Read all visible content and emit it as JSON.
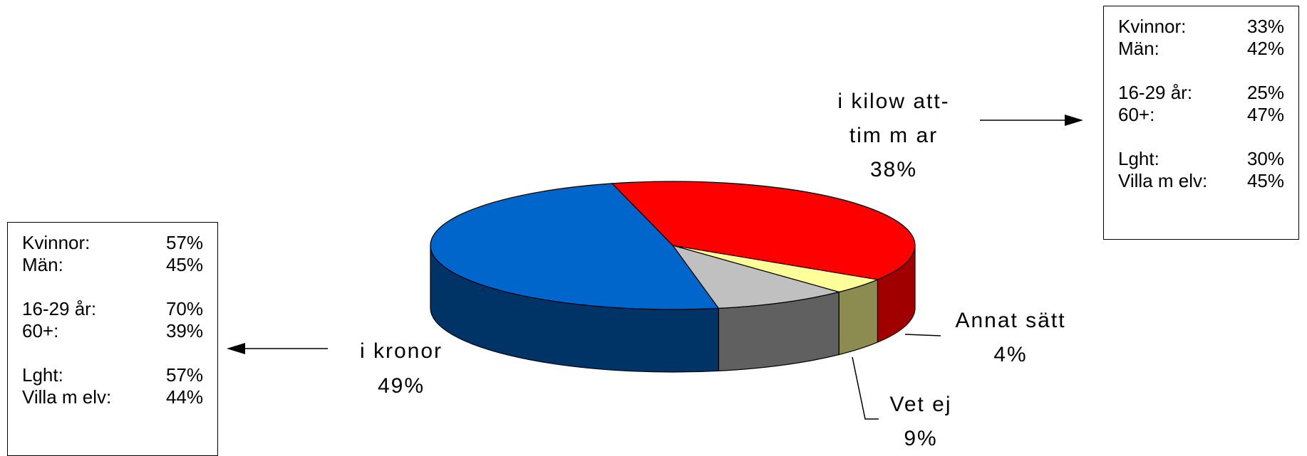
{
  "chart_data": {
    "type": "pie",
    "three_d": true,
    "slices": [
      {
        "label": "i kilowatt-timmar",
        "label_line1": "i kilow att-",
        "label_line2": "tim m ar",
        "value": 38,
        "value_text": "38%",
        "color": "#ff0000",
        "side_color": "#a00000"
      },
      {
        "label": "Annat sätt",
        "value": 4,
        "value_text": "4%",
        "color": "#ffff99",
        "side_color": "#8c8c50"
      },
      {
        "label": "Vet ej",
        "value": 9,
        "value_text": "9%",
        "color": "#c0c0c0",
        "side_color": "#606060"
      },
      {
        "label": "i kronor",
        "value": 49,
        "value_text": "49%",
        "color": "#0066cc",
        "side_color": "#003366"
      }
    ]
  },
  "right_box": {
    "rows": [
      {
        "label": "Kvinnor:",
        "value": "33%"
      },
      {
        "label": "Män:",
        "value": "42%"
      },
      null,
      {
        "label": "16-29 år:",
        "value": "25%"
      },
      {
        "label": "60+:",
        "value": "47%"
      },
      null,
      {
        "label": "Lght:",
        "value": "30%"
      },
      {
        "label": "Villa m elv:",
        "value": "45%"
      }
    ]
  },
  "left_box": {
    "rows": [
      {
        "label": "Kvinnor:",
        "value": "57%"
      },
      {
        "label": "Män:",
        "value": "45%"
      },
      null,
      {
        "label": "16-29 år:",
        "value": "70%"
      },
      {
        "label": "60+:",
        "value": "39%"
      },
      null,
      {
        "label": "Lght:",
        "value": "57%"
      },
      {
        "label": "Villa m elv:",
        "value": "44%"
      }
    ]
  }
}
